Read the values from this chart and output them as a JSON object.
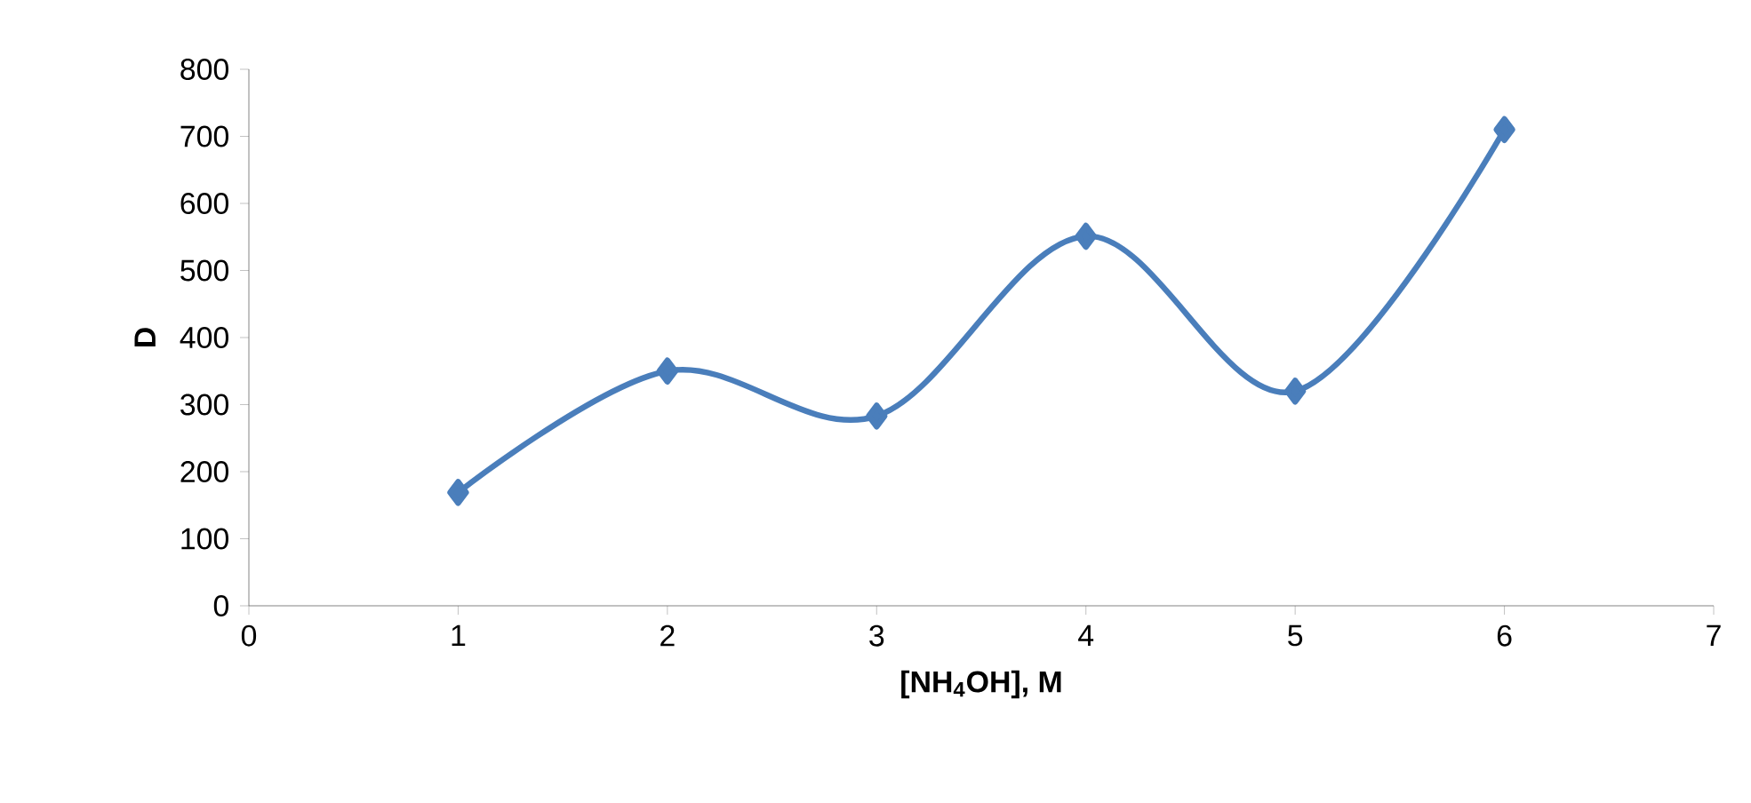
{
  "chart_data": {
    "type": "line",
    "xlabel": "**[NH$_{4}$OH], M**",
    "ylabel": "**D**",
    "x": [
      1,
      2,
      3,
      4,
      5,
      6
    ],
    "series": [
      {
        "color": "#4a7ebb",
        "values": [
          169,
          350,
          283,
          551,
          320,
          710
        ]
      }
    ],
    "xlim": [
      0,
      7
    ],
    "xticks": [
      0,
      1,
      2,
      3,
      4,
      5,
      6,
      7
    ],
    "ylim": [
      0,
      800
    ],
    "yticks": [
      0,
      100,
      200,
      300,
      400,
      500,
      600,
      700,
      800
    ],
    "marker": "diamond",
    "line_style": "solid",
    "grid": false
  }
}
